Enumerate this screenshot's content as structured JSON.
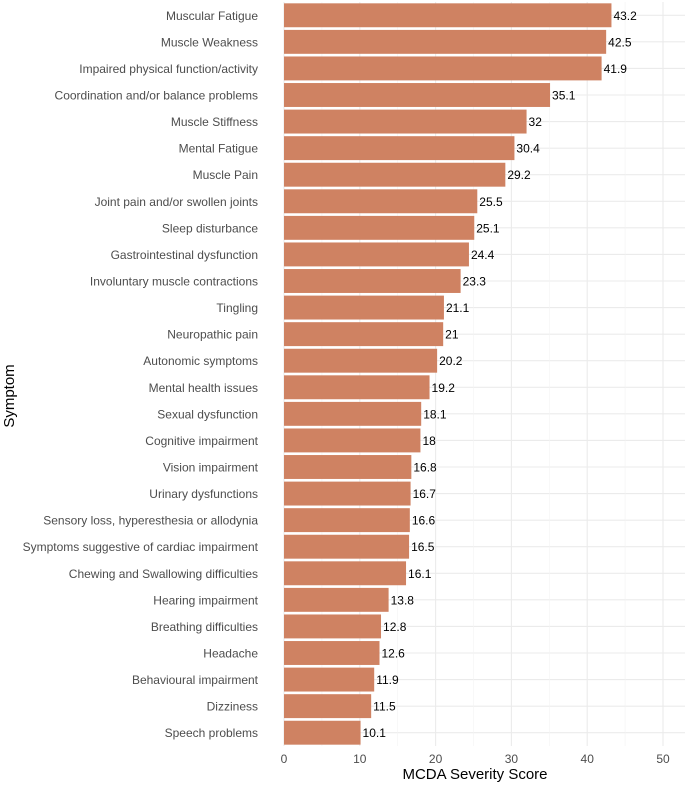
{
  "chart_data": {
    "type": "bar",
    "orientation": "horizontal",
    "title": "",
    "xlabel": "MCDA Severity Score",
    "ylabel": "Symptom",
    "xlim": [
      0,
      52
    ],
    "xticks": [
      0,
      10,
      20,
      30,
      40,
      50
    ],
    "grid": true,
    "bar_color": "#cf8262",
    "categories": [
      "Muscular Fatigue",
      "Muscle Weakness",
      "Impaired physical function/activity",
      "Coordination and/or balance problems",
      "Muscle Stiffness",
      "Mental Fatigue",
      "Muscle Pain",
      "Joint pain and/or swollen joints",
      "Sleep disturbance",
      "Gastrointestinal dysfunction",
      "Involuntary muscle contractions",
      "Tingling",
      "Neuropathic pain",
      "Autonomic symptoms",
      "Mental health issues",
      "Sexual dysfunction",
      "Cognitive impairment",
      "Vision impairment",
      "Urinary dysfunctions",
      "Sensory loss, hyperesthesia or allodynia",
      "Symptoms suggestive of cardiac impairment",
      "Chewing and Swallowing difficulties",
      "Hearing impairment",
      "Breathing difficulties",
      "Headache",
      "Behavioural impairment",
      "Dizziness",
      "Speech problems"
    ],
    "values": [
      43.2,
      42.5,
      41.9,
      35.1,
      32,
      30.4,
      29.2,
      25.5,
      25.1,
      24.4,
      23.3,
      21.1,
      21,
      20.2,
      19.2,
      18.1,
      18,
      16.8,
      16.7,
      16.6,
      16.5,
      16.1,
      13.8,
      12.8,
      12.6,
      11.9,
      11.5,
      10.1
    ]
  }
}
